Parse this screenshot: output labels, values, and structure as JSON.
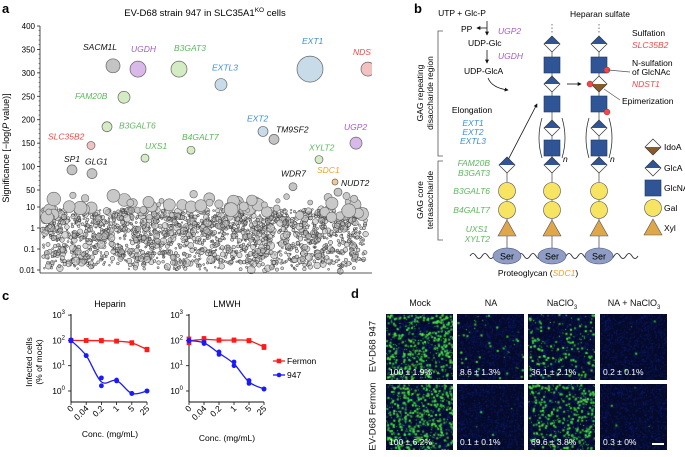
{
  "panels": {
    "a": "a",
    "b": "b",
    "c": "c",
    "d": "d"
  },
  "colors": {
    "black_gene": "#111111",
    "purple": "#a45fc1",
    "green": "#5cb85c",
    "blue": "#3b8fd8",
    "red": "#f0484a",
    "orange": "#f0a030",
    "glca_blue": "#2f5597",
    "gal_yellow": "#f7e463",
    "xyl_orange": "#e0a64a",
    "idoa_brown": "#8b5a2b",
    "fermon_red": "#ff1a1a",
    "strain947_blue": "#1a1aff"
  },
  "chart_data": [
    {
      "type": "scatter",
      "panel": "a",
      "title_main": "EV-D68 strain 947 in SLC35A1",
      "title_sup": "KO",
      "title_tail": " cells",
      "ylabel_pre": "Significance [−log(",
      "ylabel_p": "P",
      "ylabel_post": " value)]",
      "y_ticks": [
        "400",
        "350",
        "300",
        "250",
        "200",
        "150",
        "100",
        "50",
        "10",
        "1",
        "0.1",
        "0.01"
      ],
      "y_scale": "linear 50-400, log 0.01-50",
      "highlighted_genes": [
        {
          "gene": "SACM1L",
          "significance": 315,
          "color": "#111111"
        },
        {
          "gene": "UGDH",
          "significance": 308,
          "color": "#a45fc1"
        },
        {
          "gene": "B3GAT3",
          "significance": 308,
          "color": "#5cb85c"
        },
        {
          "gene": "EXTL3",
          "significance": 275,
          "color": "#3b8fd8"
        },
        {
          "gene": "EXT1",
          "significance": 308,
          "color": "#3b8fd8"
        },
        {
          "gene": "NDST1",
          "significance": 308,
          "color": "#f0484a"
        },
        {
          "gene": "FAM20B",
          "significance": 248,
          "color": "#5cb85c"
        },
        {
          "gene": "B3GALT6",
          "significance": 185,
          "color": "#5cb85c"
        },
        {
          "gene": "SLC35B2",
          "significance": 145,
          "color": "#f0484a"
        },
        {
          "gene": "UXS1",
          "significance": 118,
          "color": "#5cb85c"
        },
        {
          "gene": "B4GALT7",
          "significance": 135,
          "color": "#5cb85c"
        },
        {
          "gene": "SP1",
          "significance": 93,
          "color": "#111111"
        },
        {
          "gene": "GLG1",
          "significance": 85,
          "color": "#111111"
        },
        {
          "gene": "EXT2",
          "significance": 175,
          "color": "#3b8fd8"
        },
        {
          "gene": "TM9SF2",
          "significance": 158,
          "color": "#111111"
        },
        {
          "gene": "UGP2",
          "significance": 150,
          "color": "#a45fc1"
        },
        {
          "gene": "XYLT2",
          "significance": 115,
          "color": "#5cb85c"
        },
        {
          "gene": "WDR7",
          "significance": 57,
          "color": "#111111"
        },
        {
          "gene": "SDC1",
          "significance": 67,
          "color": "#f0a030"
        },
        {
          "gene": "NUDT2",
          "significance": 45,
          "color": "#111111"
        }
      ]
    },
    {
      "type": "line",
      "panel": "c",
      "ylabel_1": "Infected cells",
      "ylabel_2": "(% of mock)",
      "xlabel": "Conc. (mg/mL)",
      "y_scale": "log",
      "y_ticks": [
        {
          "base": "10",
          "exp": "3"
        },
        {
          "base": "10",
          "exp": "2"
        },
        {
          "base": "10",
          "exp": "1"
        },
        {
          "base": "10",
          "exp": "0"
        }
      ],
      "x_ticks": [
        "0",
        "0.04",
        "0.2",
        "1",
        "5",
        "25"
      ],
      "legend": [
        {
          "name": "Fermon",
          "color": "#ff1a1a"
        },
        {
          "name": "947",
          "color": "#1a1aff"
        }
      ],
      "subplots": [
        {
          "title": "Heparin",
          "series": [
            {
              "name": "Fermon",
              "values": [
                [
                  100,
                  100
                ],
                [
                  100,
                  98
                ],
                [
                  100,
                  95
                ],
                [
                  95,
                  92
                ],
                [
                  82,
                  78
                ],
                [
                  45,
                  42
                ]
              ]
            },
            {
              "name": "947",
              "values": [
                [
                  105,
                  95
                ],
                [
                  25,
                  25
                ],
                [
                  3.3,
                  1.6
                ],
                [
                  2.7,
                  2.5
                ],
                [
                  0.8,
                  0.8
                ],
                [
                  1.0,
                  1.0
                ]
              ]
            }
          ]
        },
        {
          "title": "LMWH",
          "series": [
            {
              "name": "Fermon",
              "values": [
                [
                  115,
                  80
                ],
                [
                  120,
                  100
                ],
                [
                  105,
                  100
                ],
                [
                  105,
                  100
                ],
                [
                  100,
                  95
                ],
                [
                  58,
                  52
                ]
              ]
            },
            {
              "name": "947",
              "values": [
                [
                  100,
                  95
                ],
                [
                  85,
                  75
                ],
                [
                  35,
                  28
                ],
                [
                  14,
                  10
                ],
                [
                  2.6,
                  2.0
                ],
                [
                  1.2,
                  1.2
                ]
              ]
            }
          ]
        }
      ]
    },
    {
      "type": "table",
      "panel": "d",
      "columns": [
        "Mock",
        "NA",
        "NaClO",
        "NA + NaClO"
      ],
      "column_subscripts": [
        "",
        "",
        "3",
        "3"
      ],
      "rows": [
        {
          "label": "EV-D68 947",
          "values": [
            "100 ± 1.9%",
            "8.6 ± 1.3%",
            "36.1 ± 2.1%",
            "0.2 ± 0.1%"
          ],
          "means": [
            100,
            8.6,
            36.1,
            0.2
          ]
        },
        {
          "label": "EV-D68 Fermon",
          "values": [
            "100 ± 6.2%",
            "0.1 ± 0.1%",
            "69.6 ± 3.8%",
            "0.3 ± 0%"
          ],
          "means": [
            100,
            0.1,
            69.6,
            0.3
          ]
        }
      ]
    }
  ],
  "diagram": {
    "top_left": "UTP + Glc-P",
    "top_right": "Heparan sulfate",
    "pp": "PP",
    "udp_glc": "UDP-Glc",
    "udp_glca": "UDP-GlcA",
    "ugp2": "UGP2",
    "ugdh": "UGDH",
    "region_repeat_1": "GAG repeating",
    "region_repeat_2": "disaccharide region",
    "region_core_1": "GAG core",
    "region_core_2": "tetrasaccharide",
    "elongation": "Elongation",
    "elong_genes": [
      "EXT1",
      "EXT2",
      "EXTL3"
    ],
    "core_genes": [
      "FAM20B",
      "B3GAT3",
      "B3GALT6",
      "B4GALT7",
      "UXS1",
      "XYLT2"
    ],
    "sulfation": "Sulfation",
    "slc35b2": "SLC35B2",
    "n_sulf_1": "N-sulfation",
    "n_sulf_2": "of GlcNAc",
    "ndst1": "NDST1",
    "epimerization": "Epimerization",
    "repeat_n": "n",
    "ser": "Ser",
    "proteoglycan": "Proteoglycan (",
    "sdc1": "SDC1",
    "close_paren": ")",
    "legend": [
      "IdoA",
      "GlcA",
      "GlcNAc",
      "Gal",
      "Xyl"
    ]
  }
}
